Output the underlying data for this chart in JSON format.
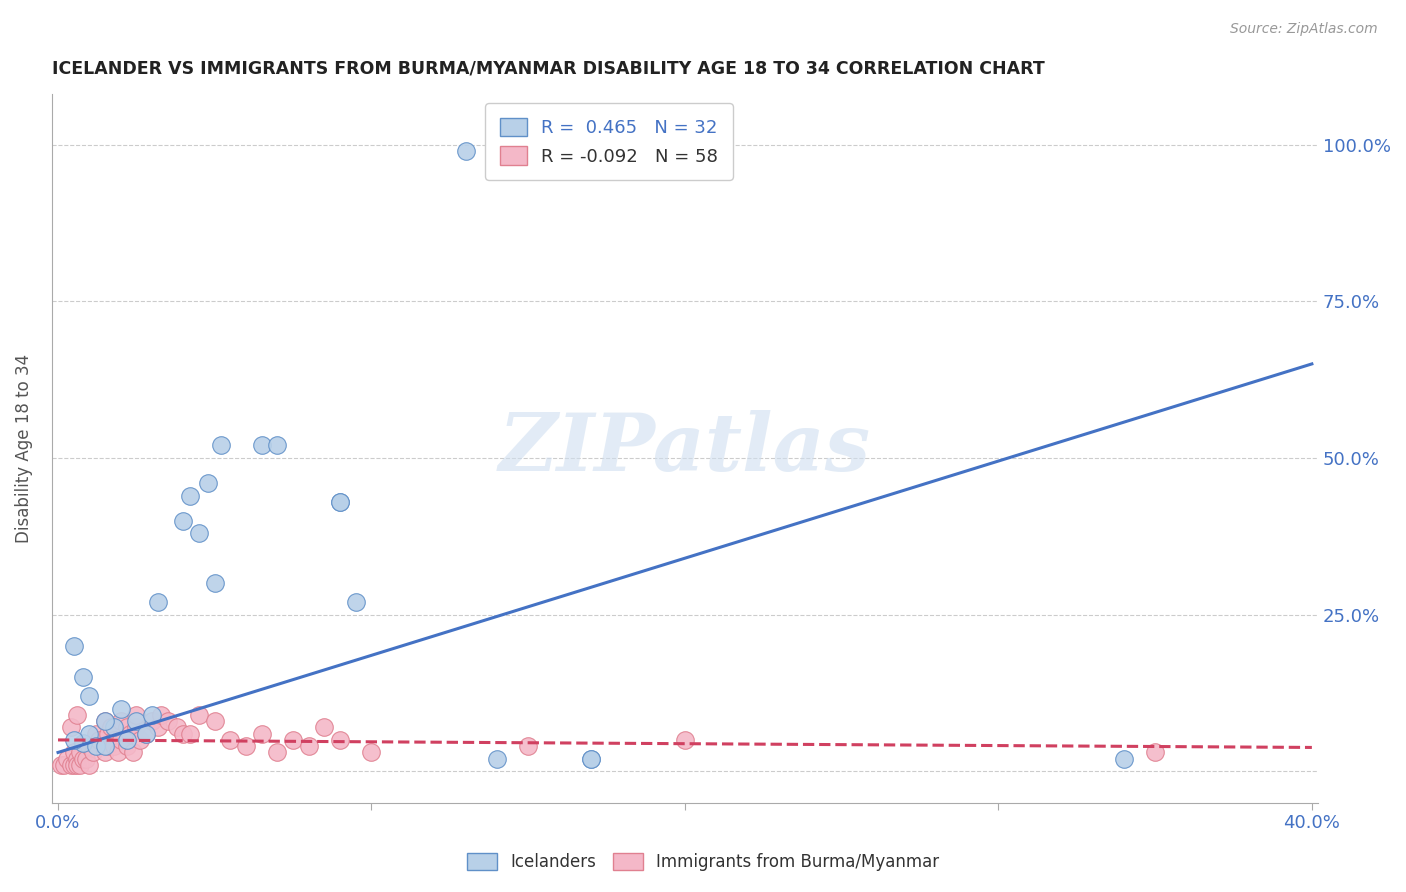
{
  "title": "ICELANDER VS IMMIGRANTS FROM BURMA/MYANMAR DISABILITY AGE 18 TO 34 CORRELATION CHART",
  "source": "Source: ZipAtlas.com",
  "ylabel": "Disability Age 18 to 34",
  "x_min": -0.002,
  "x_max": 0.402,
  "y_min": -0.05,
  "y_max": 1.08,
  "x_ticks": [
    0.0,
    0.1,
    0.2,
    0.3,
    0.4
  ],
  "x_tick_labels": [
    "0.0%",
    "",
    "",
    "",
    "40.0%"
  ],
  "y_ticks": [
    0.0,
    0.25,
    0.5,
    0.75,
    1.0
  ],
  "y_tick_labels": [
    "",
    "25.0%",
    "50.0%",
    "75.0%",
    "100.0%"
  ],
  "icelanders_color": "#b8d0e8",
  "icelanders_edge_color": "#6090c8",
  "icelanders_line_color": "#4472c4",
  "burma_color": "#f4b8c8",
  "burma_edge_color": "#e08090",
  "burma_line_color": "#d04060",
  "R_icelanders": 0.465,
  "N_icelanders": 32,
  "R_burma": -0.092,
  "N_burma": 58,
  "legend_label_1": "Icelanders",
  "legend_label_2": "Immigrants from Burma/Myanmar",
  "watermark": "ZIPatlas",
  "ice_line_x0": 0.0,
  "ice_line_y0": 0.03,
  "ice_line_x1": 0.4,
  "ice_line_y1": 0.65,
  "bur_line_x0": 0.0,
  "bur_line_y0": 0.05,
  "bur_line_x1": 0.4,
  "bur_line_y1": 0.038,
  "icelanders_x": [
    0.005,
    0.008,
    0.01,
    0.012,
    0.015,
    0.018,
    0.02,
    0.022,
    0.025,
    0.028,
    0.03,
    0.032,
    0.04,
    0.042,
    0.045,
    0.048,
    0.05,
    0.052,
    0.065,
    0.07,
    0.09,
    0.09,
    0.095,
    0.13,
    0.14,
    0.17,
    0.17,
    0.34,
    0.005,
    0.008,
    0.01,
    0.015
  ],
  "icelanders_y": [
    0.2,
    0.045,
    0.06,
    0.04,
    0.04,
    0.07,
    0.1,
    0.05,
    0.08,
    0.06,
    0.09,
    0.27,
    0.4,
    0.44,
    0.38,
    0.46,
    0.3,
    0.52,
    0.52,
    0.52,
    0.43,
    0.43,
    0.27,
    0.99,
    0.02,
    0.02,
    0.02,
    0.02,
    0.05,
    0.15,
    0.12,
    0.08
  ],
  "burma_x": [
    0.001,
    0.002,
    0.003,
    0.004,
    0.005,
    0.005,
    0.006,
    0.006,
    0.007,
    0.007,
    0.008,
    0.009,
    0.01,
    0.01,
    0.011,
    0.012,
    0.013,
    0.015,
    0.015,
    0.016,
    0.016,
    0.017,
    0.018,
    0.018,
    0.019,
    0.02,
    0.02,
    0.022,
    0.022,
    0.023,
    0.024,
    0.025,
    0.025,
    0.026,
    0.028,
    0.03,
    0.032,
    0.033,
    0.035,
    0.038,
    0.04,
    0.042,
    0.045,
    0.05,
    0.055,
    0.06,
    0.065,
    0.07,
    0.075,
    0.08,
    0.085,
    0.09,
    0.1,
    0.15,
    0.2,
    0.35,
    0.004,
    0.006
  ],
  "burma_y": [
    0.01,
    0.01,
    0.02,
    0.01,
    0.01,
    0.03,
    0.02,
    0.01,
    0.01,
    0.03,
    0.02,
    0.02,
    0.04,
    0.01,
    0.03,
    0.06,
    0.05,
    0.08,
    0.03,
    0.06,
    0.04,
    0.07,
    0.05,
    0.04,
    0.03,
    0.08,
    0.05,
    0.07,
    0.04,
    0.06,
    0.03,
    0.07,
    0.09,
    0.05,
    0.06,
    0.08,
    0.07,
    0.09,
    0.08,
    0.07,
    0.06,
    0.06,
    0.09,
    0.08,
    0.05,
    0.04,
    0.06,
    0.03,
    0.05,
    0.04,
    0.07,
    0.05,
    0.03,
    0.04,
    0.05,
    0.03,
    0.07,
    0.09
  ]
}
